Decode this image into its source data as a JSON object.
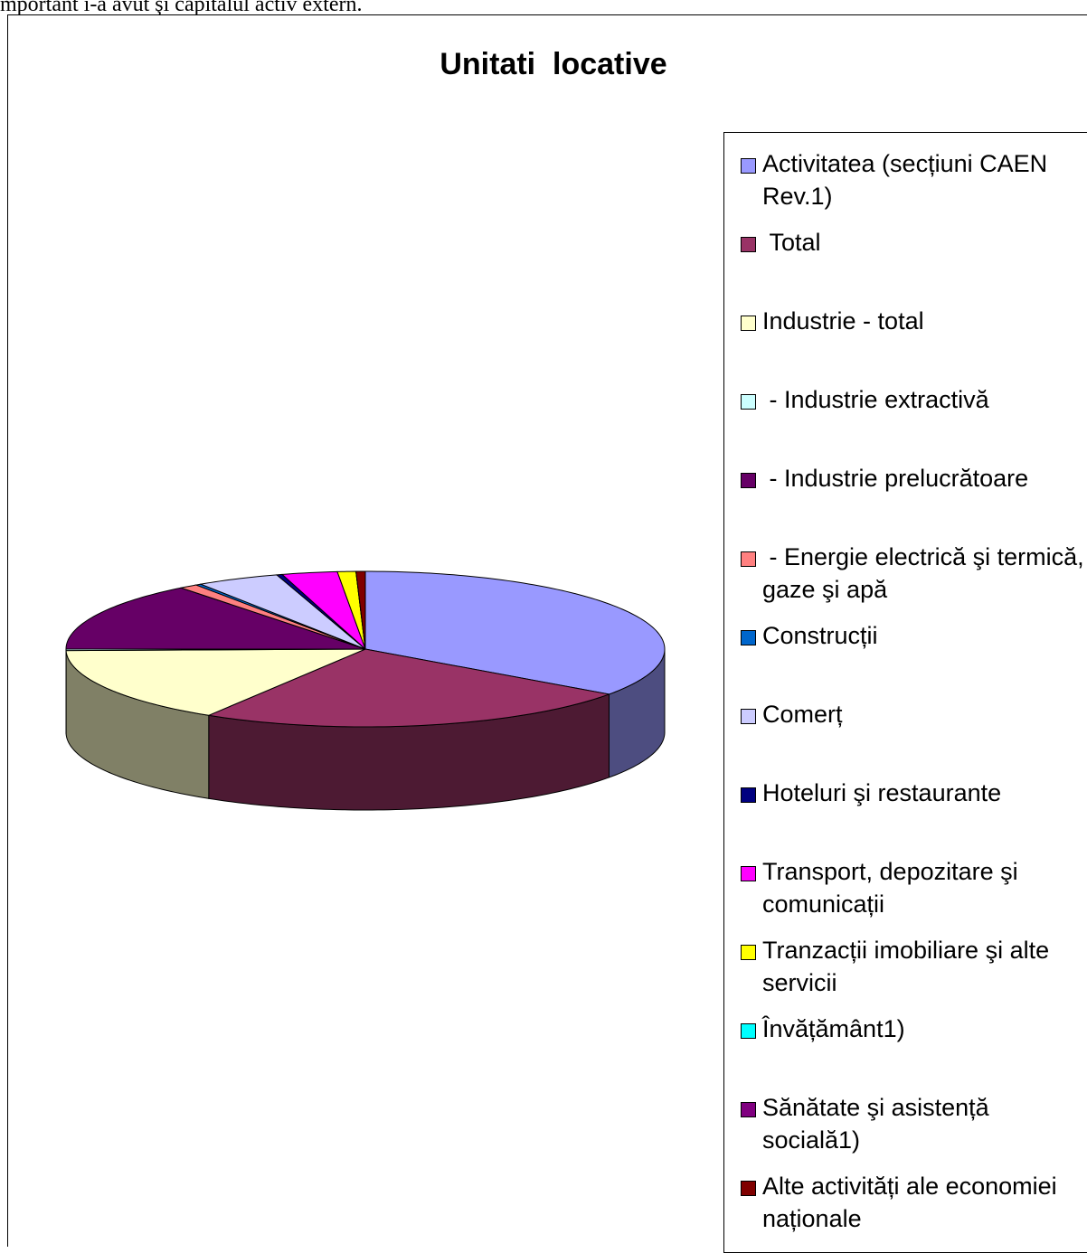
{
  "page_text": "mportant i-a avut şi capitalul activ extern.",
  "chart_data": {
    "type": "pie3d",
    "title": "Unitati  locative",
    "categories": [
      "Activitatea (secțiuni CAEN Rev.1)",
      " Total",
      "Industrie - total",
      " - Industrie extractivă",
      " - Industrie prelucrătoare",
      " - Energie electrică şi termică, gaze şi apă",
      "Construcții",
      "Comerț",
      "Hoteluri şi restaurante",
      "Transport, depozitare şi comunicații",
      "Tranzacții imobiliare şi alte servicii",
      "Învățământ1)",
      "Sănătate şi asistență socială1)",
      "Alte activități ale economiei naționale"
    ],
    "values": [
      35,
      24,
      16,
      0.3,
      14.5,
      1,
      0.3,
      4.5,
      0.3,
      3,
      1,
      0,
      0,
      0.5
    ],
    "colors": [
      "#9999ff",
      "#993366",
      "#ffffcc",
      "#ccffff",
      "#660066",
      "#ff8080",
      "#0066cc",
      "#ccccff",
      "#000080",
      "#ff00ff",
      "#ffff00",
      "#00ffff",
      "#800080",
      "#800000"
    ],
    "legend": "right"
  }
}
